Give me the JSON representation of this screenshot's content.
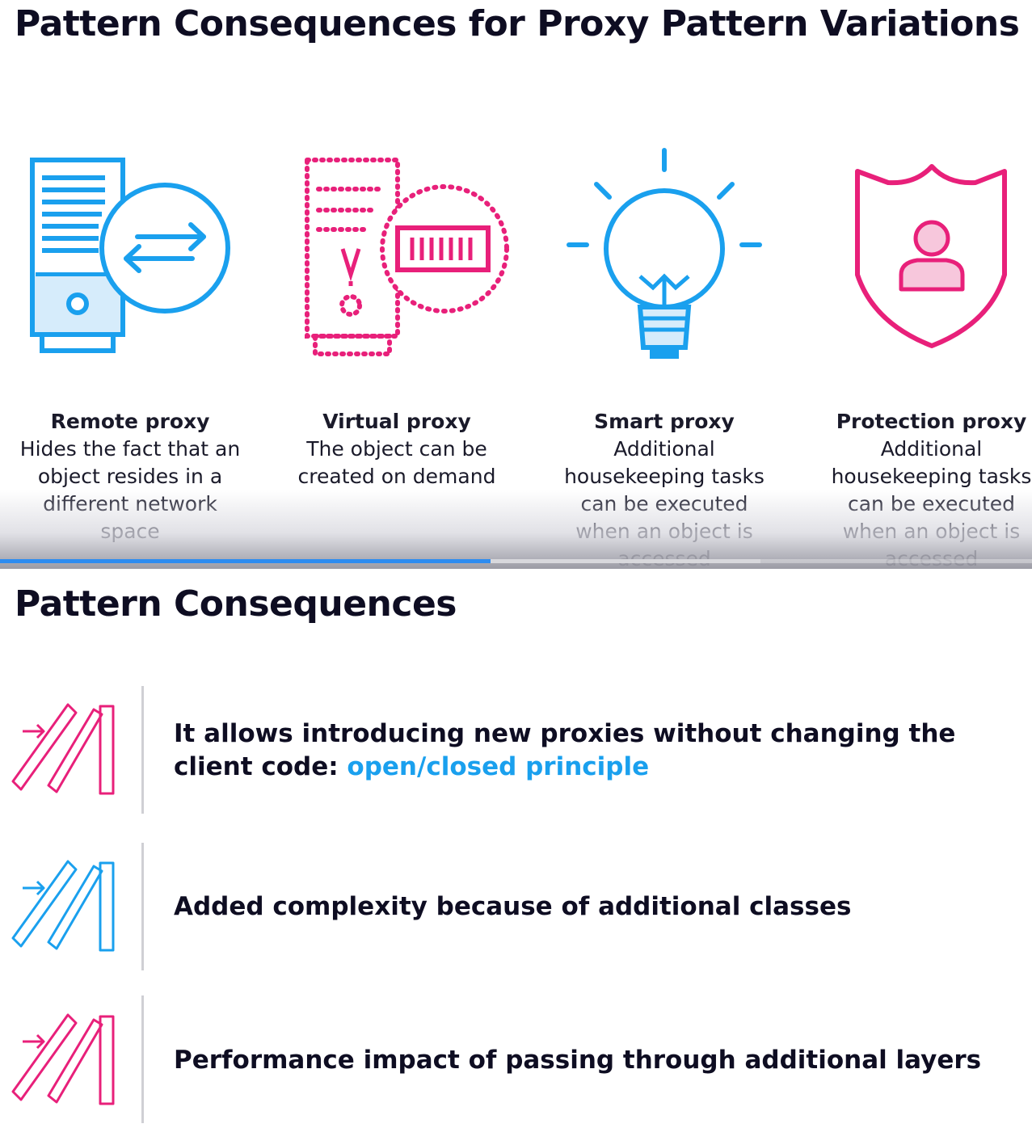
{
  "slide1": {
    "title": "Pattern Consequences for Proxy Pattern Variations",
    "variations": [
      {
        "name": "Remote proxy",
        "description": "Hides the fact that an object resides in a different network space",
        "icon": "server-transfer-icon"
      },
      {
        "name": "Virtual proxy",
        "description": "The object can be created on demand",
        "icon": "virtual-device-icon"
      },
      {
        "name": "Smart proxy",
        "description": "Additional housekeeping tasks can be executed when an object is accessed",
        "icon": "lightbulb-icon"
      },
      {
        "name": "Protection proxy",
        "description": "Additional housekeeping tasks can be executed when an object is accessed",
        "icon": "shield-user-icon"
      }
    ],
    "video_progress": {
      "played_fraction": 0.475,
      "buffered_fraction": 0.737
    }
  },
  "slide2": {
    "title": "Pattern Consequences",
    "consequences": [
      {
        "text": "It allows introducing new proxies without changing the client code: ",
        "link": "open/closed principle",
        "icon": "domino-arrow-icon",
        "icon_color": "#e8207a"
      },
      {
        "text": "Added complexity because of additional classes",
        "icon": "domino-arrow-icon",
        "icon_color": "#1aa0ee"
      },
      {
        "text": "Performance impact of passing through additional layers",
        "icon": "domino-arrow-icon",
        "icon_color": "#e8207a"
      }
    ]
  },
  "colors": {
    "blue": "#1aa0ee",
    "pink": "#e8207a",
    "title": "#0e0d22",
    "progress": "#2d8cf0"
  }
}
